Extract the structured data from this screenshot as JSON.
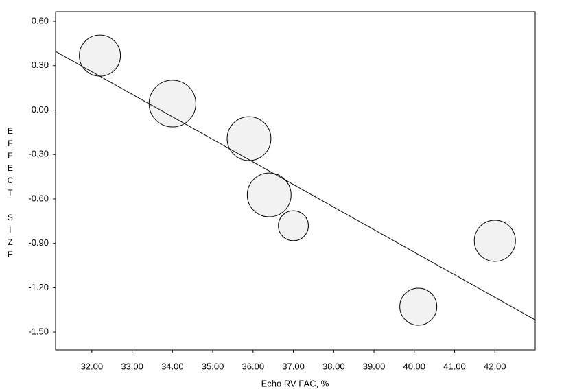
{
  "chart_data": {
    "type": "bubble",
    "x_label": "Echo RV FAC, %",
    "y_label": "EFFECT SIZE",
    "x": [
      32.2,
      34.0,
      35.9,
      36.4,
      37.0,
      40.1,
      42.0
    ],
    "values": [
      0.368,
      0.044,
      -0.193,
      -0.573,
      -0.781,
      -1.328,
      -0.883
    ],
    "weights": [
      9.0,
      11.6,
      10.2,
      10.2,
      4.8,
      7.3,
      9.0
    ],
    "color": "#f2f2f2",
    "regression": {
      "intercept": 5.136,
      "slope": -0.1524
    },
    "xlim": [
      31.1,
      43.0
    ],
    "ylim": [
      -1.62,
      0.665
    ],
    "xticks": [
      {
        "value": 32,
        "label": "32.00"
      },
      {
        "value": 33,
        "label": "33.00"
      },
      {
        "value": 34,
        "label": "34.00"
      },
      {
        "value": 35,
        "label": "35.00"
      },
      {
        "value": 36,
        "label": "36.00"
      },
      {
        "value": 37,
        "label": "37.00"
      },
      {
        "value": 38,
        "label": "38.00"
      },
      {
        "value": 39,
        "label": "39.00"
      },
      {
        "value": 40,
        "label": "40.00"
      },
      {
        "value": 41,
        "label": "41.00"
      },
      {
        "value": 42,
        "label": "42.00"
      }
    ],
    "yticks": [
      {
        "value": 0.6,
        "label": "0.60"
      },
      {
        "value": 0.3,
        "label": "0.30"
      },
      {
        "value": 0,
        "label": "0.00"
      },
      {
        "value": -0.3,
        "label": "-0.30"
      },
      {
        "value": -0.6,
        "label": "-0.60"
      },
      {
        "value": -0.9,
        "label": "-0.90"
      },
      {
        "value": -1.2,
        "label": "-1.20"
      },
      {
        "value": -1.5,
        "label": "-1.50"
      }
    ]
  }
}
